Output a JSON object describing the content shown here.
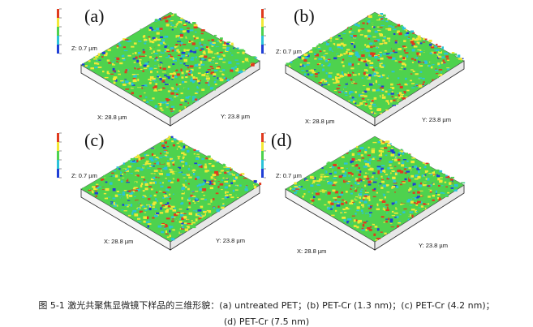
{
  "panels": [
    {
      "label": "(a)",
      "z": "Z: 0.7 µm",
      "x": "X: 28.8 µm",
      "y": "Y: 23.8 µm"
    },
    {
      "label": "(b)",
      "z": "Z: 0.7 µm",
      "x": "X: 28.8 µm",
      "y": "Y: 23.8 µm"
    },
    {
      "label": "(c)",
      "z": "Z: 0.7 µm",
      "x": "X: 28.8 µm",
      "y": "Y: 23.8 µm"
    },
    {
      "label": "(d)",
      "z": "Z: 0.7 µm",
      "x": "X: 28.8 µm",
      "y": "Y: 23.8 µm"
    }
  ],
  "caption": {
    "line1": "图 5-1 激光共聚焦显微镜下样品的三维形貌：(a) untreated PET；(b) PET-Cr (1.3 nm)；(c) PET-Cr (4.2 nm)；",
    "line2": "(d) PET-Cr (7.5 nm)"
  },
  "colors": {
    "low": "#1f3fd6",
    "mid": "#2bc3d8",
    "green": "#4ed24e",
    "yellow": "#f2e836",
    "high": "#e03a1e"
  }
}
